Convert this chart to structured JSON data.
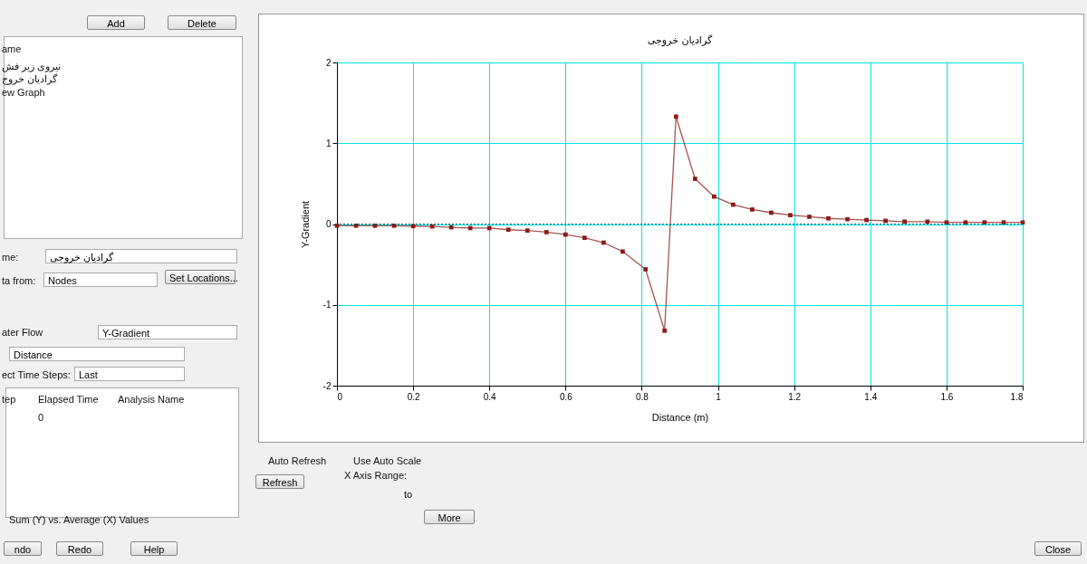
{
  "chart_data": [
    {
      "type": "line",
      "title": "گرادیان خروجی",
      "xlabel": "Distance (m)",
      "ylabel": "Y-Gradient",
      "x": [
        0,
        0.05,
        0.1,
        0.15,
        0.2,
        0.25,
        0.3,
        0.35,
        0.4,
        0.45,
        0.5,
        0.55,
        0.6,
        0.65,
        0.7,
        0.75,
        0.81,
        0.86,
        0.89,
        0.94,
        0.99,
        1.04,
        1.09,
        1.14,
        1.19,
        1.24,
        1.29,
        1.34,
        1.39,
        1.44,
        1.49,
        1.55,
        1.6,
        1.65,
        1.7,
        1.75,
        1.8
      ],
      "series": [
        {
          "color": "#8b1a1a",
          "values": [
            -0.02,
            -0.02,
            -0.02,
            -0.02,
            -0.025,
            -0.03,
            -0.04,
            -0.05,
            -0.05,
            -0.07,
            -0.08,
            -0.1,
            -0.13,
            -0.17,
            -0.23,
            -0.34,
            -0.56,
            -1.32,
            1.33,
            0.56,
            0.34,
            0.24,
            0.18,
            0.14,
            0.11,
            0.09,
            0.07,
            0.06,
            0.05,
            0.04,
            0.03,
            0.03,
            0.02,
            0.02,
            0.02,
            0.02,
            0.02
          ]
        }
      ],
      "xlim": [
        0,
        1.8
      ],
      "xticks": [
        0,
        0.2,
        0.4,
        0.6,
        0.8,
        1,
        1.2,
        1.4,
        1.6,
        1.8
      ],
      "ylim": [
        -2,
        2
      ],
      "yticks": [
        -2,
        -1,
        0,
        1,
        2
      ],
      "grid": true,
      "marker": "square",
      "line_style": "solid",
      "ref_lines": [
        {
          "axis": "y",
          "value": 0,
          "color": "#206060",
          "line_style": "dotted"
        }
      ]
    },
    {
      "type": "other",
      "annotations": [
        "Add",
        "Delete",
        "ame",
        "نیروی زیر فش",
        "گرادیان خروج",
        "ew Graph",
        "me:",
        "گرادیان خروجی",
        "ta from:",
        "Nodes",
        "Set Locations...",
        "ater Flow",
        "Y-Gradient",
        "Distance",
        "ect Time Steps:",
        "Last",
        "tep",
        "Elapsed Time",
        "Analysis Name",
        "0",
        "Sum (Y) vs. Average (X) Values",
        "ndo",
        "Redo",
        "Help",
        "Auto Refresh",
        "Use Auto Scale",
        "Refresh",
        "X Axis Range:",
        "to",
        "More",
        "Close"
      ]
    }
  ]
}
